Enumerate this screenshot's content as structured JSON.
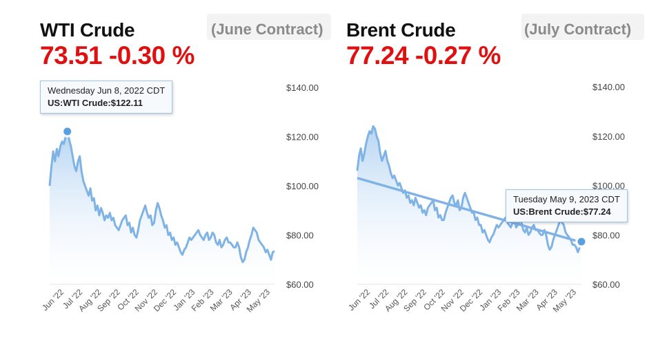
{
  "panels": {
    "wti": {
      "title": "WTI Crude",
      "contract": "(June Contract)",
      "price": "73.51 -0.30 %",
      "tooltip": {
        "date": "Wednesday Jun 8, 2022 CDT",
        "value": "US:WTI Crude:$122.11"
      }
    },
    "brent": {
      "title": "Brent Crude",
      "contract": "(July Contract)",
      "price": "77.24 -0.27 %",
      "tooltip": {
        "date": "Tuesday May 9, 2023 CDT",
        "value": "US:Brent Crude:$77.24"
      }
    }
  },
  "colors": {
    "line": "#7fb2e5",
    "fill_top": "#a9cdf0",
    "price": "#e01010",
    "marker": "#5aa0e0"
  },
  "chart_data": [
    {
      "type": "area",
      "title": "WTI Crude",
      "yticks": [
        "$140.00",
        "$120.00",
        "$100.00",
        "$80.00",
        "$60.00"
      ],
      "ylim": [
        60,
        140
      ],
      "xticks": [
        "Jun '22",
        "Jul '22",
        "Aug '22",
        "Sep '22",
        "Oct '22",
        "Nov '22",
        "Dec '22",
        "Jan '23",
        "Feb '23",
        "Mar '23",
        "Apr '23",
        "May '23"
      ],
      "series": [
        {
          "values": [
            100,
            108,
            114,
            110,
            115,
            112,
            116,
            118,
            117,
            120,
            122.11,
            119,
            116,
            112,
            108,
            106,
            110,
            112,
            106,
            102,
            100,
            98,
            96,
            99,
            94,
            95,
            90,
            92,
            88,
            91,
            89,
            86,
            88,
            87,
            89,
            86,
            87,
            84,
            83,
            82,
            84,
            86,
            87,
            88,
            84,
            85,
            81,
            83,
            80,
            79,
            82,
            86,
            88,
            90,
            92,
            89,
            87,
            88,
            84,
            85,
            90,
            93,
            91,
            88,
            86,
            83,
            84,
            80,
            81,
            78,
            79,
            76,
            77,
            75,
            73,
            72,
            74,
            75,
            77,
            79,
            78,
            79,
            80,
            81,
            82,
            80,
            79,
            78,
            80,
            81,
            78,
            79,
            81,
            80,
            77,
            76,
            78,
            75,
            76,
            78,
            79,
            77,
            77,
            76,
            75,
            75,
            77,
            75,
            71,
            69,
            70,
            73,
            75,
            78,
            80,
            83,
            82,
            81,
            78,
            77,
            76,
            75,
            73,
            74,
            72,
            70,
            73,
            73.51
          ]
        }
      ]
    },
    {
      "type": "area",
      "title": "Brent Crude",
      "yticks": [
        "$140.00",
        "$120.00",
        "$100.00",
        "$80.00",
        "$60.00"
      ],
      "ylim": [
        60,
        140
      ],
      "xticks": [
        "Jun '22",
        "Jul '22",
        "Aug '22",
        "Sep '22",
        "Oct '22",
        "Nov '22",
        "Dec '22",
        "Jan '23",
        "Feb '23",
        "Mar '23",
        "Apr '23",
        "May '23"
      ],
      "series": [
        {
          "values": [
            106,
            112,
            115,
            110,
            113,
            117,
            120,
            122,
            121,
            124,
            123,
            120,
            118,
            113,
            110,
            112,
            114,
            110,
            108,
            105,
            103,
            104,
            102,
            100,
            101,
            99,
            97,
            98,
            95,
            96,
            93,
            94,
            92,
            95,
            93,
            91,
            92,
            89,
            90,
            88,
            91,
            92,
            93,
            94,
            90,
            91,
            87,
            88,
            86,
            86,
            89,
            91,
            93,
            95,
            96,
            93,
            92,
            94,
            90,
            91,
            95,
            97,
            95,
            93,
            91,
            89,
            89,
            86,
            87,
            84,
            84,
            81,
            82,
            80,
            78,
            77,
            79,
            80,
            82,
            84,
            83,
            84,
            85,
            86,
            87,
            85,
            84,
            83,
            85,
            86,
            83,
            84,
            86,
            85,
            82,
            81,
            83,
            80,
            81,
            83,
            84,
            82,
            82,
            81,
            80,
            80,
            82,
            80,
            76,
            74,
            75,
            78,
            80,
            82,
            84,
            86,
            85,
            84,
            81,
            80,
            79,
            78,
            76,
            76,
            75,
            73,
            75,
            77.24
          ]
        },
        {
          "values": [
            103,
            77
          ]
        }
      ]
    }
  ]
}
